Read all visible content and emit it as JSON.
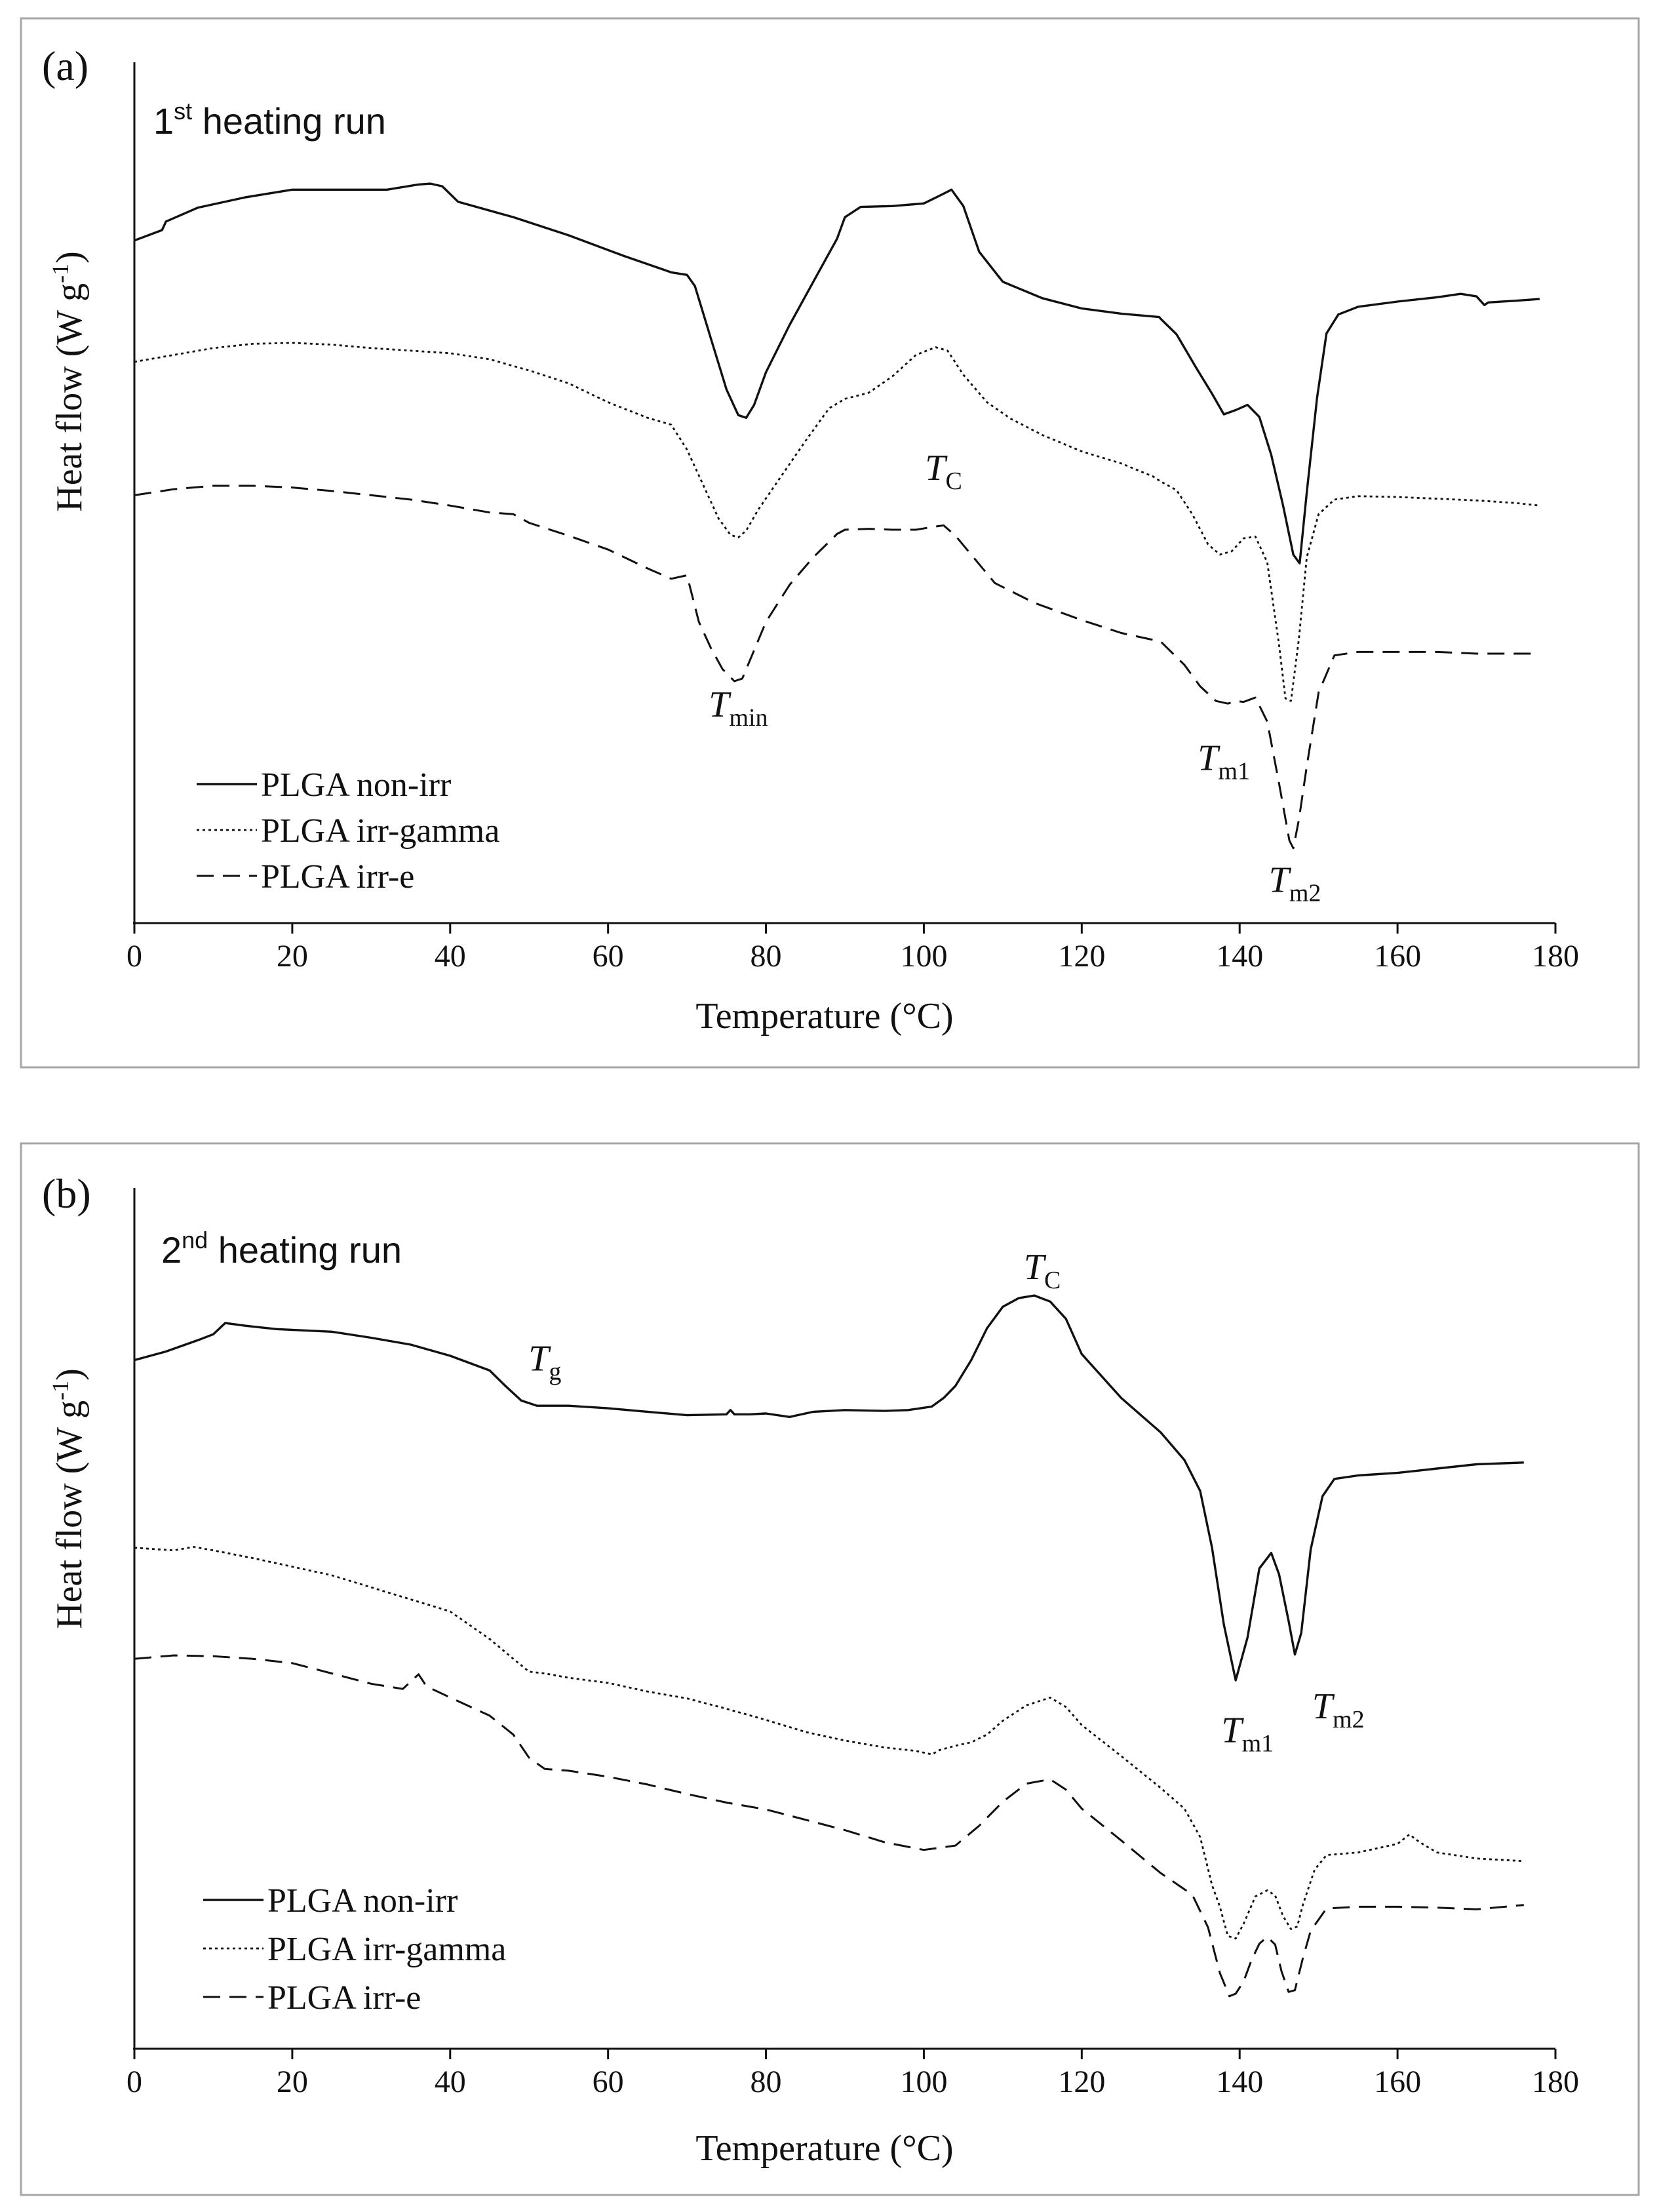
{
  "colors": {
    "ink": "#111111",
    "frame": "#a6a6a6",
    "background": "#ffffff"
  },
  "chart_data": [
    {
      "type": "line",
      "panel_label": "(a)",
      "title": "1st heating run",
      "title_main": "1",
      "title_sup": "st",
      "title_rest": " heating run",
      "xlabel": "Temperature (°C)",
      "ylabel": "Heat flow (W g-1)",
      "ylabel_main": "Heat flow (W g",
      "ylabel_sup": "-1",
      "ylabel_end": ")",
      "xlim": [
        0,
        180
      ],
      "ylim": [
        0,
        100
      ],
      "xticks": [
        0,
        20,
        40,
        60,
        80,
        100,
        120,
        140,
        160,
        180
      ],
      "y_tick_labels": "none (arbitrary units)",
      "legend_position": "bottom-left",
      "series": [
        {
          "name": "PLGA non-irr",
          "style": "solid",
          "x": [
            0,
            3.5,
            4,
            8,
            14,
            20,
            28,
            32,
            36,
            37.5,
            39,
            41,
            48,
            55,
            62,
            68,
            70,
            71,
            73,
            75,
            76.5,
            77.5,
            78.5,
            80,
            83,
            86,
            89,
            90,
            92,
            96,
            100,
            102,
            103.5,
            105,
            107,
            110,
            115,
            120,
            125,
            129.8,
            130,
            132,
            134.5,
            136.5,
            138,
            139.5,
            141,
            142.5,
            144,
            145.5,
            146.8,
            147.6,
            148.5,
            149.8,
            151,
            152.5,
            155,
            160,
            165,
            168,
            170,
            171,
            171.5,
            175,
            178
          ],
          "values": [
            79.3,
            80.5,
            81.5,
            83.1,
            84.3,
            85.2,
            85.2,
            85.2,
            85.8,
            85.9,
            85.6,
            83.8,
            82,
            79.9,
            77.5,
            75.6,
            75.3,
            74,
            68,
            62,
            59,
            58.7,
            60.2,
            64,
            69.5,
            74.5,
            79.5,
            82,
            83.2,
            83.3,
            83.6,
            84.5,
            85.2,
            83.3,
            78,
            74.5,
            72.6,
            71.4,
            70.8,
            70.4,
            70.2,
            68.4,
            64.5,
            61.5,
            59.1,
            59.6,
            60.2,
            58.8,
            54.4,
            48.5,
            42.8,
            41.8,
            50,
            61,
            68.5,
            70.7,
            71.6,
            72.2,
            72.7,
            73.1,
            72.8,
            71.8,
            72.1,
            72.3,
            72.5
          ],
          "linewidth": 3.4
        },
        {
          "name": "PLGA irr-gamma",
          "style": "dotted",
          "x": [
            0,
            5,
            10,
            15,
            20,
            25,
            30,
            35,
            40,
            45,
            50,
            55,
            60,
            65,
            68,
            70,
            72,
            74,
            75.5,
            76.5,
            77.5,
            79,
            82,
            85,
            88,
            90,
            93,
            96,
            99,
            101.5,
            103,
            105,
            108,
            111,
            115,
            120,
            125,
            129,
            130,
            132,
            134,
            136,
            137.5,
            139,
            140.5,
            142,
            143.5,
            145,
            145.8,
            146.5,
            147.5,
            148.5,
            150,
            152,
            155,
            160,
            165,
            170,
            175,
            178
          ],
          "values": [
            65.2,
            66,
            66.8,
            67.3,
            67.4,
            67.2,
            66.8,
            66.5,
            66.2,
            65.5,
            64.2,
            62.7,
            60.5,
            58.7,
            57.9,
            55,
            51,
            47,
            45.1,
            44.8,
            45.6,
            48,
            52,
            56,
            59.8,
            60.9,
            61.6,
            63.5,
            66,
            66.9,
            66.5,
            63.7,
            60.5,
            58.6,
            56.7,
            54.8,
            53.4,
            51.9,
            51.3,
            50.3,
            47.5,
            44,
            42.8,
            43.2,
            44.7,
            44.9,
            41.9,
            32.3,
            26.1,
            25.8,
            33,
            42.5,
            47.5,
            49.2,
            49.6,
            49.5,
            49.3,
            49.1,
            48.8,
            48.5
          ],
          "linewidth": 2.8
        },
        {
          "name": "PLGA irr-e",
          "style": "dashed",
          "x": [
            0,
            5,
            10,
            15,
            20,
            25,
            30,
            35,
            40,
            45,
            48,
            50,
            55,
            60,
            65,
            68,
            70,
            71.5,
            73,
            74.5,
            76,
            77,
            78,
            80,
            83,
            86,
            89,
            90,
            93,
            96,
            99,
            101,
            102.5,
            104,
            106,
            109,
            114,
            120,
            125,
            130,
            133,
            135,
            137,
            138.5,
            139.5,
            140.5,
            142,
            143.5,
            145,
            146.3,
            146.8,
            147.5,
            148.5,
            150,
            152,
            155,
            160,
            165,
            170,
            175,
            178
          ],
          "values": [
            49.7,
            50.4,
            50.8,
            50.8,
            50.6,
            50.2,
            49.7,
            49.2,
            48.5,
            47.7,
            47.5,
            46.5,
            45,
            43.4,
            41.2,
            40,
            40.4,
            35,
            32,
            29.5,
            28.1,
            28.4,
            30.6,
            35,
            39.3,
            42.5,
            45.2,
            45.7,
            45.8,
            45.7,
            45.7,
            46,
            46.2,
            45,
            42.8,
            39.5,
            37.2,
            35.2,
            33.7,
            32.7,
            30,
            27.5,
            25.8,
            25.5,
            25.8,
            25.7,
            26.2,
            23.4,
            16.2,
            9.6,
            8.7,
            12,
            18.2,
            26.8,
            31.1,
            31.5,
            31.5,
            31.5,
            31.3,
            31.3,
            31.3
          ],
          "linewidth": 3.0
        }
      ],
      "annotations": [
        {
          "text": "T",
          "sub": "min",
          "x": 76.5,
          "y": 24
        },
        {
          "text": "T",
          "sub": "C",
          "x": 102.5,
          "y": 51.5
        },
        {
          "text": "T",
          "sub": "m1",
          "x": 138,
          "y": 17.8
        },
        {
          "text": "T",
          "sub": "m2",
          "x": 147,
          "y": 3.6
        }
      ]
    },
    {
      "type": "line",
      "panel_label": "(b)",
      "title": "2nd heating run",
      "title_main": "2",
      "title_sup": "nd",
      "title_rest": " heating run",
      "xlabel": "Temperature (°C)",
      "ylabel": "Heat flow (W g-1)",
      "ylabel_main": "Heat flow (W g",
      "ylabel_sup": "-1",
      "ylabel_end": ")",
      "xlim": [
        0,
        180
      ],
      "ylim": [
        0,
        100
      ],
      "xticks": [
        0,
        20,
        40,
        60,
        80,
        100,
        120,
        140,
        160,
        180
      ],
      "y_tick_labels": "none (arbitrary units)",
      "legend_position": "bottom-left",
      "series": [
        {
          "name": "PLGA non-irr",
          "style": "solid",
          "x": [
            0,
            4,
            8,
            10,
            11.5,
            14,
            18,
            25,
            30,
            35,
            40,
            45,
            47,
            49,
            51,
            55,
            60,
            65,
            70,
            75,
            75.5,
            76,
            78,
            80,
            83,
            84,
            86,
            90,
            95,
            98,
            101,
            102.5,
            104,
            106,
            108,
            110,
            112,
            114,
            116,
            118,
            120,
            125,
            130,
            133,
            135,
            136.5,
            138,
            139.5,
            141,
            142.5,
            144,
            145,
            146.2,
            147,
            147.8,
            149,
            150.5,
            152,
            155,
            160,
            165,
            170,
            176
          ],
          "values": [
            80,
            81,
            82.3,
            83,
            84.3,
            84,
            83.6,
            83.3,
            82.6,
            81.8,
            80.5,
            78.8,
            77,
            75.3,
            74.7,
            74.7,
            74.4,
            74,
            73.6,
            73.7,
            74.2,
            73.7,
            73.7,
            73.8,
            73.4,
            73.6,
            74,
            74.2,
            74.1,
            74.2,
            74.6,
            75.6,
            77,
            80,
            83.7,
            86.2,
            87.2,
            87.5,
            86.8,
            84.8,
            80.7,
            75.6,
            71.6,
            68.4,
            64.8,
            58.2,
            49.3,
            42.8,
            47.8,
            55.8,
            57.6,
            55.1,
            49.7,
            45.8,
            48.3,
            58,
            64.2,
            66.2,
            66.6,
            66.9,
            67.4,
            67.9,
            68.1
          ],
          "linewidth": 3.4
        },
        {
          "name": "PLGA irr-gamma",
          "style": "dotted",
          "x": [
            0,
            5,
            7.5,
            10,
            15,
            20,
            25,
            30,
            35,
            40,
            45,
            48,
            50,
            52,
            55,
            60,
            65,
            70,
            75,
            80,
            85,
            90,
            95,
            99,
            101,
            102,
            104,
            106,
            108,
            110,
            113,
            116,
            118,
            120,
            125,
            130,
            133,
            135,
            136.5,
            137.5,
            138.5,
            139.5,
            140.5,
            142,
            143.5,
            144.5,
            145.5,
            146.5,
            147.3,
            148,
            149.5,
            151,
            155,
            160,
            161.5,
            162.5,
            163.5,
            165,
            170,
            176
          ],
          "values": [
            58.2,
            57.9,
            58.3,
            57.9,
            57,
            56,
            55,
            53.6,
            52.2,
            50.8,
            47.6,
            45.3,
            43.8,
            43.6,
            43.1,
            42.5,
            41.5,
            40.7,
            39.5,
            38.2,
            36.8,
            35.8,
            35,
            34.6,
            34.2,
            34.7,
            35.2,
            35.6,
            36.5,
            38.1,
            39.9,
            40.8,
            39.7,
            37.6,
            34,
            30.3,
            27.9,
            24.6,
            19,
            16.5,
            13.1,
            12.8,
            14.5,
            17.7,
            18.4,
            17.8,
            15.4,
            13.9,
            14.2,
            16.7,
            20.8,
            22.5,
            22.8,
            23.8,
            24.9,
            24.2,
            23.6,
            22.8,
            22.1,
            21.8
          ],
          "linewidth": 2.8
        },
        {
          "name": "PLGA irr-e",
          "style": "dashed",
          "x": [
            0,
            5,
            10,
            15,
            20,
            25,
            30,
            34,
            36,
            37,
            40,
            45,
            48,
            50,
            52,
            55,
            60,
            65,
            70,
            75,
            80,
            85,
            90,
            95,
            100,
            104,
            107,
            110,
            113,
            116,
            118,
            120,
            125,
            130,
            134,
            136,
            137.5,
            138.7,
            139.5,
            140.5,
            141.5,
            142.5,
            143.5,
            144.5,
            145.3,
            146.2,
            147,
            148,
            149,
            151,
            155,
            160,
            165,
            170,
            176
          ],
          "values": [
            45.3,
            45.7,
            45.6,
            45.3,
            44.8,
            43.6,
            42.4,
            41.8,
            43.5,
            42.1,
            40.8,
            38.7,
            36.5,
            33.8,
            32.5,
            32.3,
            31.6,
            30.7,
            29.6,
            28.6,
            27.8,
            26.6,
            25.4,
            24,
            23.1,
            23.6,
            25.9,
            28.7,
            30.8,
            31.3,
            30.1,
            27.9,
            24.2,
            20.4,
            17.9,
            14.1,
            8.8,
            6.1,
            6.4,
            7.8,
            10.3,
            12.2,
            13,
            12.1,
            9,
            6.6,
            6.8,
            10.5,
            13.7,
            16.3,
            16.5,
            16.5,
            16.4,
            16.2,
            16.7
          ],
          "linewidth": 3.0
        }
      ],
      "annotations": [
        {
          "text": "T",
          "sub": "g",
          "x": 52,
          "y": 78.8
        },
        {
          "text": "T",
          "sub": "C",
          "x": 115,
          "y": 89.4
        },
        {
          "text": "T",
          "sub": "m1",
          "x": 141,
          "y": 35.6
        },
        {
          "text": "T",
          "sub": "m2",
          "x": 152.5,
          "y": 38.4
        }
      ]
    }
  ]
}
